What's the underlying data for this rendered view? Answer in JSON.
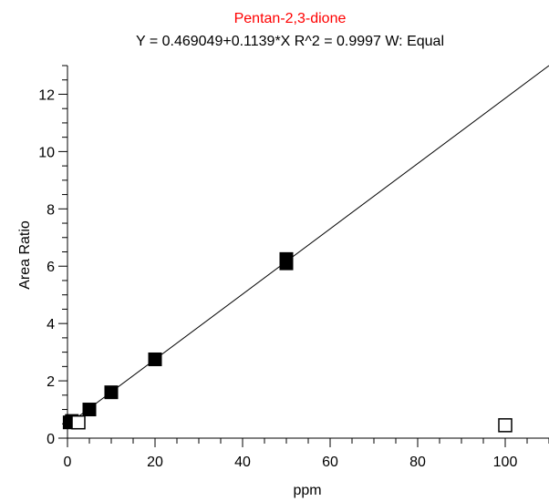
{
  "chart_data": {
    "type": "scatter",
    "title": "Pentan-2,3-dione",
    "subtitle": "Y = 0.469049+0.1139*X   R^2 = 0.9997   W: Equal",
    "xlabel": "ppm",
    "ylabel": "Area Ratio",
    "xlim": [
      0,
      110
    ],
    "ylim": [
      0,
      13
    ],
    "x_ticks": [
      0,
      20,
      40,
      60,
      80,
      100
    ],
    "y_ticks": [
      0,
      2,
      4,
      6,
      8,
      10,
      12
    ],
    "grid": false,
    "legend": "none",
    "fit_line": {
      "intercept": 0.469049,
      "slope": 0.1139
    },
    "series": [
      {
        "marker": "filled-square",
        "points": [
          {
            "x": 0.5,
            "y": 0.55
          },
          {
            "x": 1,
            "y": 0.6
          },
          {
            "x": 5,
            "y": 1.0
          },
          {
            "x": 10,
            "y": 1.6
          },
          {
            "x": 20,
            "y": 2.75
          },
          {
            "x": 50,
            "y": 6.1
          },
          {
            "x": 50,
            "y": 6.25
          }
        ]
      },
      {
        "marker": "open-square",
        "points": [
          {
            "x": 2.5,
            "y": 0.55
          },
          {
            "x": 100,
            "y": 0.45
          }
        ]
      }
    ],
    "colors": {
      "title": "#ff0000",
      "text": "#000000",
      "line": "#000000",
      "marker": "#000000"
    }
  }
}
